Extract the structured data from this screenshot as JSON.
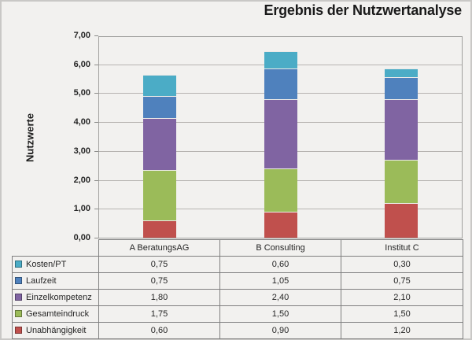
{
  "title": "Ergebnis der Nutzwertanalyse",
  "chart_data": {
    "type": "bar",
    "stacked": true,
    "title": "Ergebnis der Nutzwertanalyse",
    "ylabel": "Nutzwerte",
    "xlabel": "",
    "ylim": [
      0,
      7
    ],
    "ytick_interval": 1,
    "yticks": [
      "0,00",
      "1,00",
      "2,00",
      "3,00",
      "4,00",
      "5,00",
      "6,00",
      "7,00"
    ],
    "grid": "horizontal",
    "legend_position": "table-below-left",
    "categories": [
      "A BeratungsAG",
      "B Consulting",
      "Institut C"
    ],
    "series": [
      {
        "name": "Unabhängigkeit",
        "color": "#c0504d",
        "values": [
          0.6,
          0.9,
          1.2
        ],
        "display": [
          "0,60",
          "0,90",
          "1,20"
        ]
      },
      {
        "name": "Gesamteindruck",
        "color": "#9bbb59",
        "values": [
          1.75,
          1.5,
          1.5
        ],
        "display": [
          "1,75",
          "1,50",
          "1,50"
        ]
      },
      {
        "name": "Einzelkompetenz",
        "color": "#8064a2",
        "values": [
          1.8,
          2.4,
          2.1
        ],
        "display": [
          "1,80",
          "2,40",
          "2,10"
        ]
      },
      {
        "name": "Laufzeit",
        "color": "#4f81bd",
        "values": [
          0.75,
          1.05,
          0.75
        ],
        "display": [
          "0,75",
          "1,05",
          "0,75"
        ]
      },
      {
        "name": "Kosten/PT",
        "color": "#4bacc6",
        "values": [
          0.75,
          0.6,
          0.3
        ],
        "display": [
          "0,75",
          "0,60",
          "0,30"
        ]
      }
    ]
  },
  "table": {
    "column_headers": [
      "A BeratungsAG",
      "B Consulting",
      "Institut C"
    ],
    "rows": [
      {
        "label": "Kosten/PT",
        "color": "#4bacc6",
        "values": [
          "0,75",
          "0,60",
          "0,30"
        ]
      },
      {
        "label": "Laufzeit",
        "color": "#4f81bd",
        "values": [
          "0,75",
          "1,05",
          "0,75"
        ]
      },
      {
        "label": "Einzelkompetenz",
        "color": "#8064a2",
        "values": [
          "1,80",
          "2,40",
          "2,10"
        ]
      },
      {
        "label": "Gesamteindruck",
        "color": "#9bbb59",
        "values": [
          "1,75",
          "1,50",
          "1,50"
        ]
      },
      {
        "label": "Unabhängigkeit",
        "color": "#c0504d",
        "values": [
          "0,60",
          "0,90",
          "1,20"
        ]
      }
    ]
  }
}
